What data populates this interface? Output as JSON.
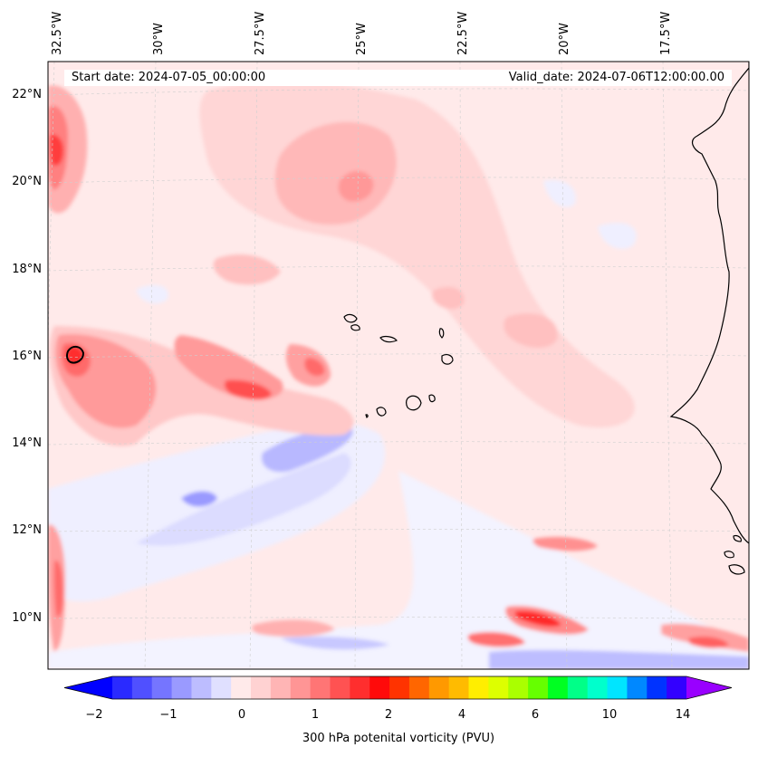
{
  "header": {
    "start_date": "Start date: 2024-07-05_00:00:00",
    "valid_date": "Valid_date: 2024-07-06T12:00:00.00"
  },
  "longitude_labels": [
    "32.5°W",
    "30°W",
    "27.5°W",
    "25°W",
    "22.5°W",
    "20°W",
    "17.5°W"
  ],
  "latitude_labels": [
    "22°N",
    "20°N",
    "18°N",
    "16°N",
    "14°N",
    "12°N",
    "10°N"
  ],
  "colorbar": {
    "label": "300 hPa potenital vorticity (PVU)",
    "ticks": [
      "−2",
      "−1",
      "0",
      "1",
      "2",
      "4",
      "6",
      "10",
      "14"
    ],
    "colors": [
      "#0000ff",
      "#2a2aff",
      "#5050ff",
      "#7575ff",
      "#9a9aff",
      "#bdbdff",
      "#e0e0ff",
      "#ffeaea",
      "#ffd2d2",
      "#ffb5b5",
      "#ff9595",
      "#ff7575",
      "#ff5252",
      "#ff2e2e",
      "#ff0a0a",
      "#ff3300",
      "#ff6600",
      "#ff9900",
      "#ffbb00",
      "#ffee00",
      "#ddff00",
      "#aaff00",
      "#66ff00",
      "#00ff22",
      "#00ff88",
      "#00ffcc",
      "#00e5ff",
      "#0088ff",
      "#0033ff",
      "#3300ff",
      "#9900ff"
    ]
  },
  "map": {
    "region": "Eastern tropical North Atlantic, Cape Verde Islands and West African coast",
    "background_color": "#ffeaea"
  }
}
